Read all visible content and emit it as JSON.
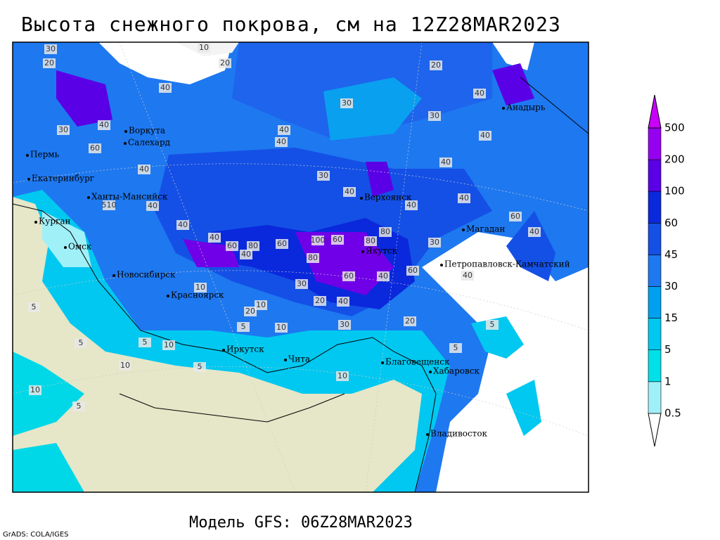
{
  "header": {
    "title": "Высота снежного покрова, см на 12Z28MAR2023"
  },
  "map": {
    "cities": [
      "Воркута",
      "Салехард",
      "Пермь",
      "Екатеринбург",
      "Ханты-Мансийск",
      "Курган",
      "Омск",
      "Новосибирск",
      "Красноярск",
      "Иркутск",
      "Чита",
      "Благовещенск",
      "Хабаровск",
      "Владивосток",
      "Якутск",
      "Верхоянск",
      "Магадан",
      "Анадырь",
      "Петропавловск-Камчатский"
    ],
    "contour_labels": [
      "20",
      "10",
      "20",
      "30",
      "30",
      "20",
      "30",
      "40",
      "40",
      "40",
      "60",
      "40",
      "30",
      "40",
      "40",
      "40",
      "30",
      "40",
      "40",
      "40",
      "40",
      "60",
      "40",
      "510",
      "40",
      "40",
      "40",
      "40",
      "60",
      "80",
      "60",
      "100",
      "60",
      "80",
      "80",
      "60",
      "80",
      "40",
      "40",
      "60",
      "30",
      "40",
      "10",
      "20",
      "10",
      "30",
      "20",
      "30",
      "5",
      "5",
      "10",
      "5",
      "10",
      "5",
      "10",
      "5",
      "5",
      "10",
      "20",
      "5",
      "10",
      "5"
    ]
  },
  "colorbar": {
    "levels": [
      0.5,
      1,
      5,
      15,
      30,
      45,
      60,
      100,
      200,
      500
    ],
    "colors": [
      "#ffffff",
      "#a0f0f8",
      "#00e0e8",
      "#00c8f0",
      "#00a0f0",
      "#1e78f0",
      "#1450e6",
      "#0a28dc",
      "#5a00e6",
      "#9600f0",
      "#c800fa"
    ]
  },
  "footer": {
    "model": "Модель GFS: 06Z28MAR2023",
    "credit": "GrADS: COLA/IGES"
  }
}
